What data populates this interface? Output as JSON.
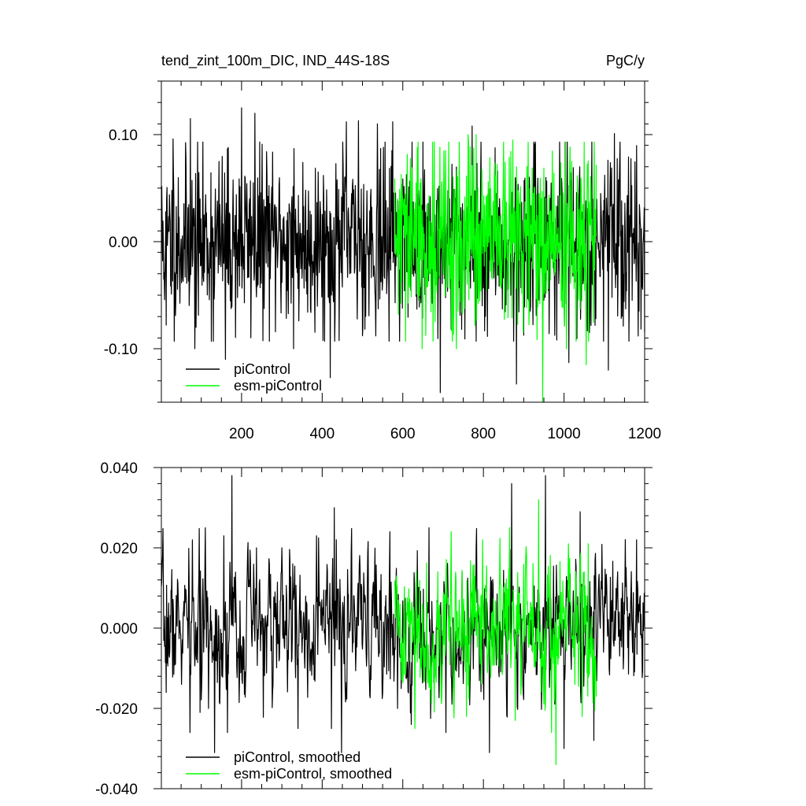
{
  "chart_data": [
    {
      "type": "line",
      "title": "tend_zint_100m_DIC, IND_44S-18S",
      "units": "PgC/y",
      "xlim": [
        1,
        1200
      ],
      "ylim": [
        -0.15,
        0.15
      ],
      "x_ticks": [
        200,
        400,
        600,
        800,
        1000,
        1200
      ],
      "y_ticks": [
        0.1,
        0.0,
        -0.1
      ],
      "y_tick_labels": [
        "0.10",
        "0.00",
        "-0.10"
      ],
      "grid": false,
      "legend_position": "bottom-left",
      "series": [
        {
          "name": "piControl",
          "color": "#000000",
          "x_range": [
            1,
            1200
          ],
          "std": 0.04,
          "smoothing": 0.0,
          "seed": 11,
          "extremes": [
            [
              13,
              -0.078
            ],
            [
              30,
              0.096
            ],
            [
              73,
              0.115
            ],
            [
              84,
              -0.1
            ],
            [
              130,
              -0.093
            ],
            [
              160,
              -0.11
            ],
            [
              200,
              0.125
            ],
            [
              233,
              0.12
            ],
            [
              262,
              0.084
            ],
            [
              330,
              0.087
            ],
            [
              329,
              -0.1
            ],
            [
              420,
              -0.127
            ],
            [
              460,
              0.112
            ],
            [
              490,
              0.113
            ],
            [
              537,
              0.11
            ],
            [
              575,
              0.112
            ],
            [
              693,
              -0.141
            ],
            [
              772,
              0.108
            ],
            [
              882,
              -0.133
            ],
            [
              1012,
              -0.113
            ],
            [
              1110,
              -0.12
            ],
            [
              1125,
              0.101
            ],
            [
              1200,
              -0.085
            ]
          ]
        },
        {
          "name": "esm-piControl",
          "color": "#00ff00",
          "x_range": [
            580,
            1080
          ],
          "std": 0.042,
          "smoothing": 0.0,
          "seed": 29,
          "extremes": [
            [
              636,
              0.088
            ],
            [
              648,
              -0.1
            ],
            [
              706,
              0.085
            ],
            [
              733,
              -0.1
            ],
            [
              762,
              0.1
            ],
            [
              782,
              0.1
            ],
            [
              873,
              0.095
            ],
            [
              947,
              -0.15
            ],
            [
              1006,
              -0.1
            ],
            [
              1050,
              0.093
            ],
            [
              1055,
              -0.115
            ]
          ]
        }
      ]
    },
    {
      "type": "line",
      "title": "",
      "xlim": [
        1,
        1200
      ],
      "ylim": [
        -0.04,
        0.04
      ],
      "x_ticks": [
        200,
        400,
        600,
        800,
        1000,
        1200
      ],
      "y_ticks": [
        0.04,
        0.02,
        0.0,
        -0.02,
        -0.04
      ],
      "y_tick_labels": [
        "0.040",
        "0.020",
        "0.000",
        "-0.020",
        "-0.040"
      ],
      "grid": false,
      "legend_position": "bottom-left",
      "series": [
        {
          "name": "piControl, smoothed",
          "color": "#000000",
          "x_range": [
            1,
            1200
          ],
          "std": 0.0095,
          "smoothing": 0.5,
          "seed": 7,
          "extremes": [
            [
              13,
              -0.016
            ],
            [
              72,
              -0.026
            ],
            [
              78,
              0.022
            ],
            [
              97,
              -0.021
            ],
            [
              110,
              0.025
            ],
            [
              133,
              -0.031
            ],
            [
              156,
              0.023
            ],
            [
              165,
              -0.026
            ],
            [
              176,
              0.038
            ],
            [
              237,
              0.02
            ],
            [
              300,
              0.02
            ],
            [
              327,
              0.016
            ],
            [
              340,
              -0.025
            ],
            [
              386,
              0.023
            ],
            [
              423,
              -0.025
            ],
            [
              430,
              0.03
            ],
            [
              448,
              -0.031
            ],
            [
              568,
              0.024
            ],
            [
              587,
              -0.02
            ],
            [
              621,
              -0.024
            ],
            [
              665,
              0.025
            ],
            [
              707,
              -0.026
            ],
            [
              815,
              -0.031
            ],
            [
              870,
              0.036
            ],
            [
              954,
              0.038
            ],
            [
              1000,
              -0.03
            ],
            [
              1040,
              0.029
            ],
            [
              1074,
              -0.028
            ],
            [
              1180,
              0.022
            ]
          ]
        },
        {
          "name": "esm-piControl, smoothed",
          "color": "#00ff00",
          "x_range": [
            580,
            1080
          ],
          "std": 0.0095,
          "smoothing": 0.5,
          "seed": 41,
          "extremes": [
            [
              630,
              -0.025
            ],
            [
              720,
              0.024
            ],
            [
              758,
              -0.022
            ],
            [
              798,
              0.022
            ],
            [
              865,
              0.025
            ],
            [
              879,
              -0.023
            ],
            [
              937,
              0.032
            ],
            [
              969,
              -0.026
            ],
            [
              980,
              -0.034
            ],
            [
              1011,
              0.021
            ],
            [
              1045,
              -0.022
            ],
            [
              1060,
              0.021
            ]
          ]
        }
      ]
    }
  ]
}
